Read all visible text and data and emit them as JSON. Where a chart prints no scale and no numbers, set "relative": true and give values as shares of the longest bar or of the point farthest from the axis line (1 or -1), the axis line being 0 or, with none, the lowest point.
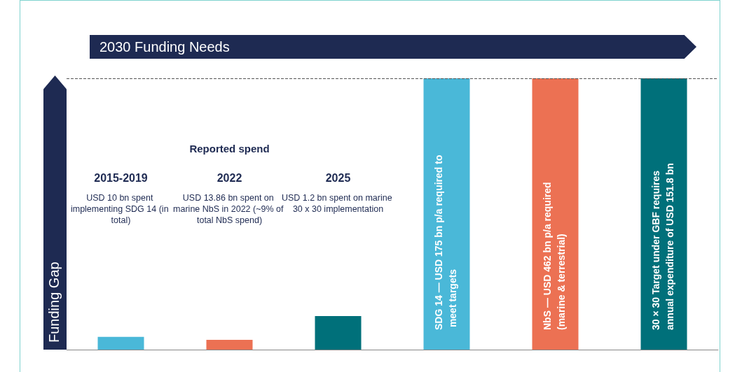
{
  "chart_data": {
    "type": "bar",
    "title": "2030 Funding Needs",
    "subtitle": "Reported spend",
    "ylabel": "Funding Gap",
    "relative": true,
    "categories": [
      "2015-2019",
      "2022",
      "2025",
      null,
      null,
      null
    ],
    "values": [
      0.047,
      0.036,
      0.124,
      1,
      1,
      1
    ],
    "colors": [
      "#4ab8d8",
      "#ec7153",
      "#00707a",
      "#4ab8d8",
      "#ec7153",
      "#00707a"
    ],
    "annotations": [
      "USD 10 bn spent implementing SDG 14 (in total)",
      "USD 13.86 bn spent on marine NbS in 2022 (~9% of total NbS spend)",
      "USD 1.2 bn spent on marine 30 x 30 implementation",
      "SDG 14 — USD 175 bn p/a required to meet targets",
      "NbS — USD 462 bn p/a required (marine & terrestrial)",
      "30 × 30 Target under GBF requires annual expenditure of USD 151.8 bn"
    ],
    "ref_lines": [
      {
        "axis": "y",
        "value": 1,
        "line_style": "dashed",
        "color": "#555555"
      }
    ],
    "grid": false
  }
}
